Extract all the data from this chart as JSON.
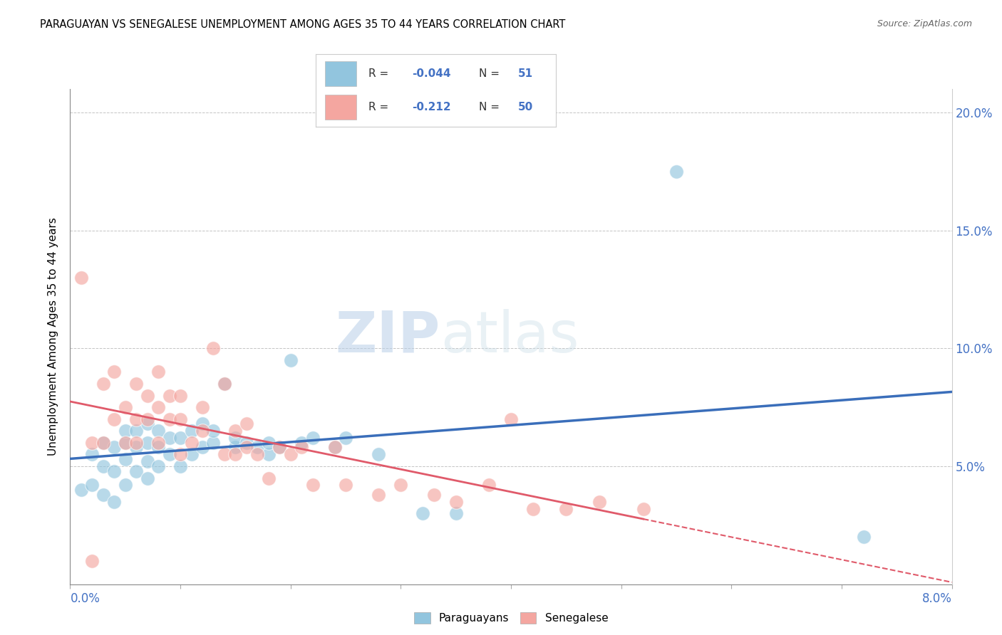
{
  "title": "PARAGUAYAN VS SENEGALESE UNEMPLOYMENT AMONG AGES 35 TO 44 YEARS CORRELATION CHART",
  "source": "Source: ZipAtlas.com",
  "ylabel": "Unemployment Among Ages 35 to 44 years",
  "xlim": [
    0.0,
    0.08
  ],
  "ylim": [
    0.0,
    0.21
  ],
  "yticks": [
    0.05,
    0.1,
    0.15,
    0.2
  ],
  "ytick_labels": [
    "5.0%",
    "10.0%",
    "15.0%",
    "20.0%"
  ],
  "legend_blue_r": "-0.044",
  "legend_blue_n": "51",
  "legend_pink_r": "-0.212",
  "legend_pink_n": "50",
  "blue_color": "#92c5de",
  "pink_color": "#f4a6a0",
  "blue_line_color": "#3a6eba",
  "pink_line_color": "#e05a6a",
  "watermark_zip": "ZIP",
  "watermark_atlas": "atlas",
  "paraguayan_x": [
    0.001,
    0.002,
    0.002,
    0.003,
    0.003,
    0.003,
    0.004,
    0.004,
    0.004,
    0.005,
    0.005,
    0.005,
    0.005,
    0.006,
    0.006,
    0.006,
    0.007,
    0.007,
    0.007,
    0.007,
    0.008,
    0.008,
    0.008,
    0.009,
    0.009,
    0.01,
    0.01,
    0.011,
    0.011,
    0.012,
    0.012,
    0.013,
    0.013,
    0.014,
    0.015,
    0.015,
    0.016,
    0.017,
    0.018,
    0.018,
    0.019,
    0.02,
    0.021,
    0.022,
    0.024,
    0.025,
    0.028,
    0.032,
    0.035,
    0.055,
    0.072
  ],
  "paraguayan_y": [
    0.04,
    0.055,
    0.042,
    0.038,
    0.05,
    0.06,
    0.035,
    0.048,
    0.058,
    0.042,
    0.053,
    0.06,
    0.065,
    0.048,
    0.058,
    0.065,
    0.045,
    0.052,
    0.06,
    0.068,
    0.05,
    0.058,
    0.065,
    0.055,
    0.062,
    0.05,
    0.062,
    0.055,
    0.065,
    0.058,
    0.068,
    0.06,
    0.065,
    0.085,
    0.058,
    0.062,
    0.06,
    0.058,
    0.055,
    0.06,
    0.058,
    0.095,
    0.06,
    0.062,
    0.058,
    0.062,
    0.055,
    0.03,
    0.03,
    0.175,
    0.02
  ],
  "senegalese_x": [
    0.001,
    0.002,
    0.003,
    0.003,
    0.004,
    0.004,
    0.005,
    0.005,
    0.006,
    0.006,
    0.006,
    0.007,
    0.007,
    0.008,
    0.008,
    0.008,
    0.009,
    0.009,
    0.01,
    0.01,
    0.01,
    0.011,
    0.012,
    0.012,
    0.013,
    0.014,
    0.014,
    0.015,
    0.015,
    0.016,
    0.016,
    0.017,
    0.018,
    0.019,
    0.02,
    0.021,
    0.022,
    0.024,
    0.025,
    0.028,
    0.03,
    0.033,
    0.035,
    0.038,
    0.04,
    0.042,
    0.045,
    0.048,
    0.052,
    0.002
  ],
  "senegalese_y": [
    0.13,
    0.06,
    0.085,
    0.06,
    0.09,
    0.07,
    0.06,
    0.075,
    0.085,
    0.07,
    0.06,
    0.08,
    0.07,
    0.06,
    0.075,
    0.09,
    0.07,
    0.08,
    0.055,
    0.07,
    0.08,
    0.06,
    0.065,
    0.075,
    0.1,
    0.055,
    0.085,
    0.055,
    0.065,
    0.058,
    0.068,
    0.055,
    0.045,
    0.058,
    0.055,
    0.058,
    0.042,
    0.058,
    0.042,
    0.038,
    0.042,
    0.038,
    0.035,
    0.042,
    0.07,
    0.032,
    0.032,
    0.035,
    0.032,
    0.01
  ]
}
